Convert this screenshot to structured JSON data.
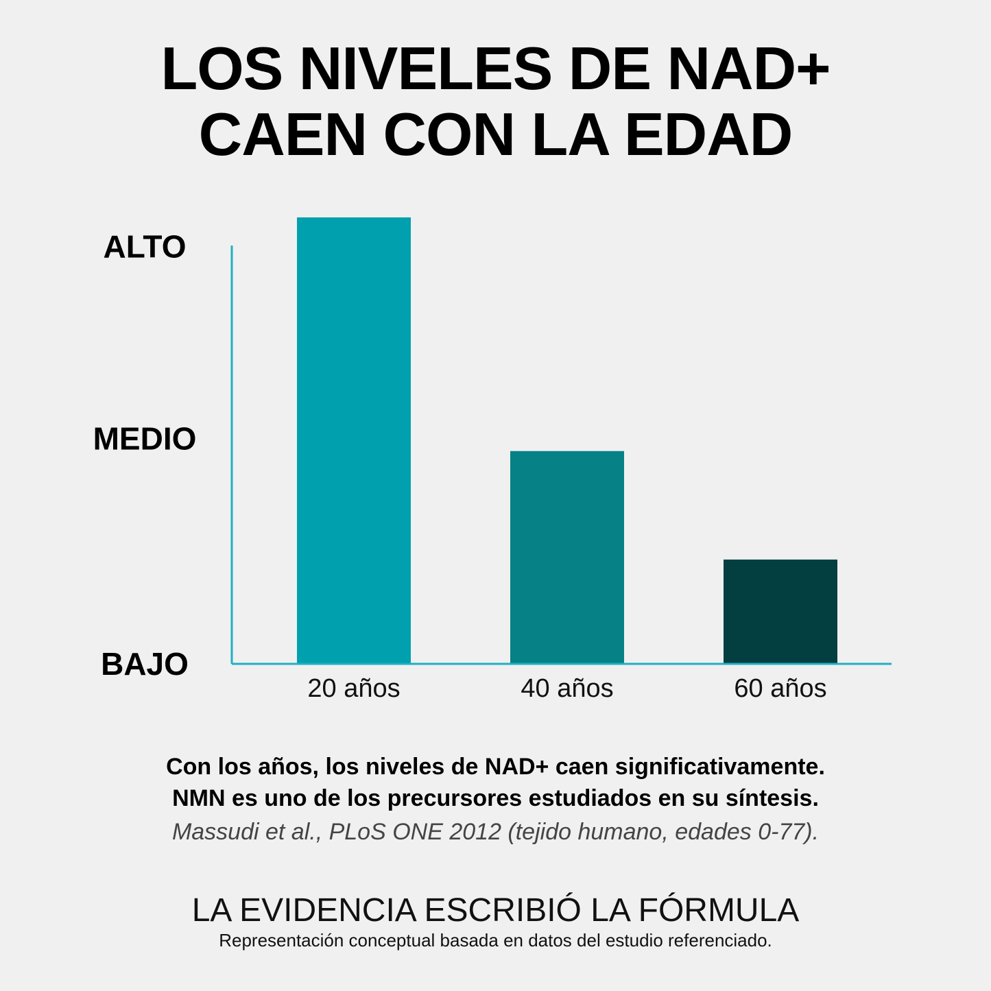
{
  "title": {
    "line1": "LOS NIVELES DE NAD+",
    "line2": "CAEN CON LA EDAD"
  },
  "chart_data": {
    "type": "bar",
    "categories": [
      "20 años",
      "40 años",
      "60 años"
    ],
    "values": [
      1.07,
      0.51,
      0.25
    ],
    "yticks": [
      {
        "label": "ALTO",
        "value": 1.0
      },
      {
        "label": "MEDIO",
        "value": 0.54
      },
      {
        "label": "BAJO",
        "value": 0.0
      }
    ],
    "ylim": [
      0,
      1.07
    ],
    "colors": [
      "#00a0ae",
      "#068185",
      "#033e40"
    ],
    "axis_color": "#1fb0c2",
    "grid": false
  },
  "caption": {
    "line1": "Con los años, los niveles de NAD+ caen significativamente.",
    "line2": "NMN es uno de los precursores estudiados en su síntesis."
  },
  "citation": "Massudi et al., PLoS ONE 2012 (tejido humano, edades 0-77).",
  "tagline": "LA EVIDENCIA ESCRIBIÓ LA FÓRMULA",
  "disclaimer": "Representación conceptual basada en datos del estudio referenciado."
}
